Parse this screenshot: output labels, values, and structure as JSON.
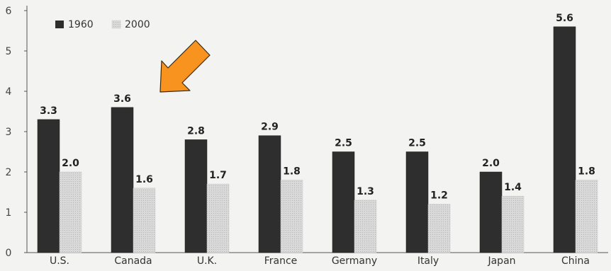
{
  "chart_data": {
    "type": "bar",
    "title": "",
    "xlabel": "",
    "ylabel": "",
    "categories": [
      "U.S.",
      "Canada",
      "U.K.",
      "France",
      "Germany",
      "Italy",
      "Japan",
      "China"
    ],
    "series": [
      {
        "name": "1960",
        "values": [
          3.3,
          3.6,
          2.8,
          2.9,
          2.5,
          2.5,
          2.0,
          5.6
        ],
        "color": "#2e2e2e"
      },
      {
        "name": "2000",
        "values": [
          2.0,
          1.6,
          1.7,
          1.8,
          1.3,
          1.2,
          1.4,
          1.8
        ],
        "color": "#d9d9d9"
      }
    ],
    "value_labels": [
      [
        "3.3",
        "3.6",
        "2.8",
        "2.9",
        "2.5",
        "2.5",
        "2.0",
        "5.6"
      ],
      [
        "2.0",
        "1.6",
        "1.7",
        "1.8",
        "1.3",
        "1.2",
        "1.4",
        "1.8"
      ]
    ],
    "y_ticks": [
      "0",
      "1",
      "2",
      "3",
      "4",
      "5",
      "6"
    ],
    "ylim": [
      0,
      6
    ],
    "grid": false,
    "legend_position": "top-left",
    "annotations": [
      {
        "kind": "arrow",
        "color": "#f7931e",
        "points_to": "Canada 1960"
      }
    ]
  }
}
